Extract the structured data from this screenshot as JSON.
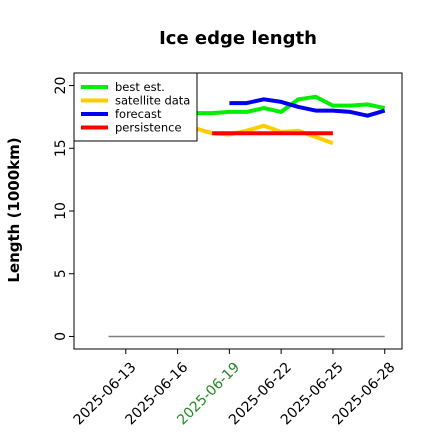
{
  "chart_data": {
    "type": "line",
    "title": "Ice edge length",
    "xlabel": "",
    "ylabel": "Length (1000km)",
    "ylim": [
      -1,
      21
    ],
    "xlim": [
      "2025-06-10",
      "2025-06-29"
    ],
    "yticks": [
      "0",
      "5",
      "10",
      "15",
      "20"
    ],
    "xticks": [
      {
        "label": "2025-06-13",
        "date": "2025-06-13",
        "color": "#000000"
      },
      {
        "label": "2025-06-16",
        "date": "2025-06-16",
        "color": "#000000"
      },
      {
        "label": "2025-06-19",
        "date": "2025-06-19",
        "color": "#228b22"
      },
      {
        "label": "2025-06-22",
        "date": "2025-06-22",
        "color": "#000000"
      },
      {
        "label": "2025-06-25",
        "date": "2025-06-25",
        "color": "#000000"
      },
      {
        "label": "2025-06-28",
        "date": "2025-06-28",
        "color": "#000000"
      }
    ],
    "grid": false,
    "legend_position": "top-left",
    "series": [
      {
        "name": "best est.",
        "color": "#00ee00",
        "x": [
          "2025-06-17",
          "2025-06-18",
          "2025-06-19",
          "2025-06-20",
          "2025-06-21",
          "2025-06-22",
          "2025-06-23",
          "2025-06-24",
          "2025-06-25",
          "2025-06-26",
          "2025-06-27",
          "2025-06-28"
        ],
        "y": [
          17.8,
          17.8,
          17.9,
          17.9,
          18.2,
          17.9,
          18.9,
          19.1,
          18.4,
          18.4,
          18.5,
          18.2
        ]
      },
      {
        "name": "satellite data",
        "color": "#ffcc00",
        "x": [
          "2025-06-17",
          "2025-06-18",
          "2025-06-19",
          "2025-06-20",
          "2025-06-21",
          "2025-06-22",
          "2025-06-23",
          "2025-06-24",
          "2025-06-25"
        ],
        "y": [
          16.6,
          16.2,
          16.1,
          16.4,
          16.8,
          16.3,
          16.4,
          15.9,
          15.4
        ]
      },
      {
        "name": "forecast",
        "color": "#0000ee",
        "x": [
          "2025-06-19",
          "2025-06-20",
          "2025-06-21",
          "2025-06-22",
          "2025-06-23",
          "2025-06-24",
          "2025-06-25",
          "2025-06-26",
          "2025-06-27",
          "2025-06-28"
        ],
        "y": [
          18.6,
          18.6,
          18.9,
          18.7,
          18.3,
          18.0,
          18.0,
          17.9,
          17.6,
          18.0
        ]
      },
      {
        "name": "persistence",
        "color": "#ff0000",
        "x": [
          "2025-06-18",
          "2025-06-19",
          "2025-06-20",
          "2025-06-21",
          "2025-06-22",
          "2025-06-23",
          "2025-06-24",
          "2025-06-25"
        ],
        "y": [
          16.2,
          16.2,
          16.2,
          16.2,
          16.2,
          16.2,
          16.2,
          16.2
        ]
      },
      {
        "name": "",
        "color": "#808080",
        "x": [
          "2025-06-12",
          "2025-06-28"
        ],
        "y": [
          0,
          0
        ]
      }
    ]
  }
}
